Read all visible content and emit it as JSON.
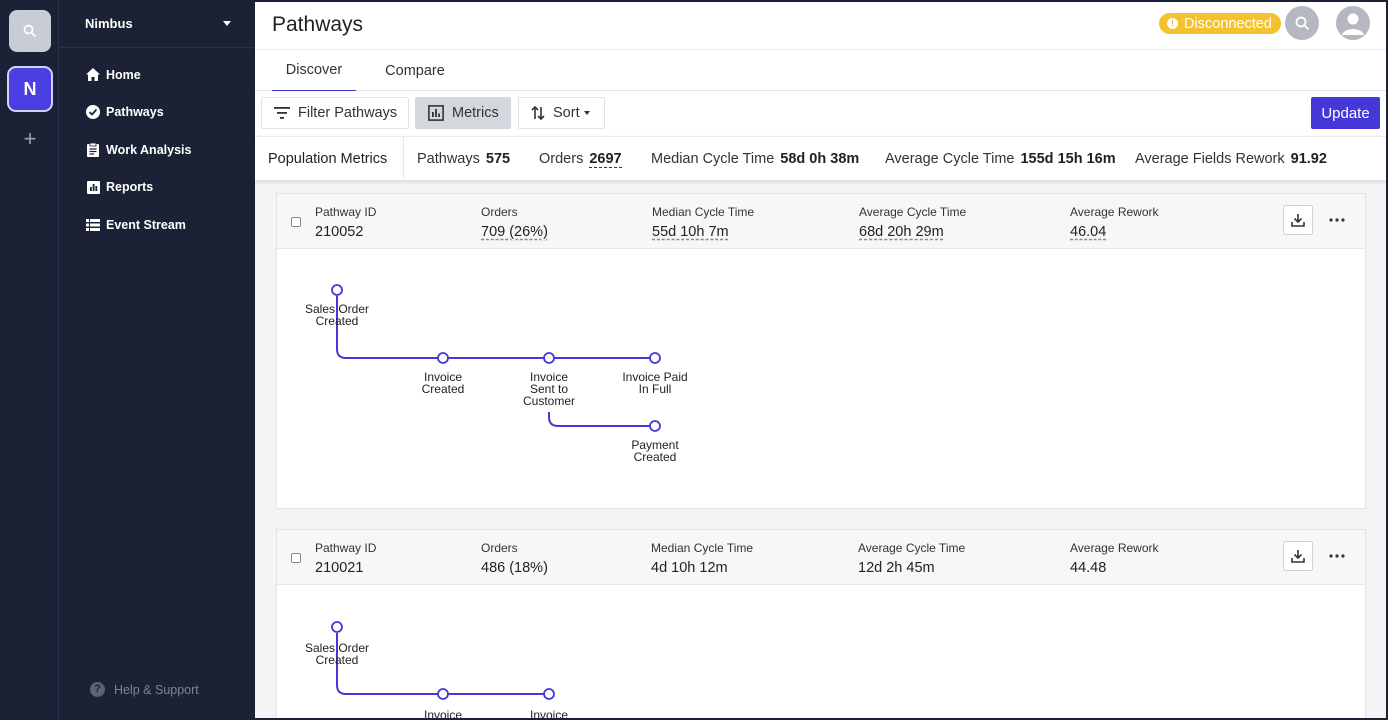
{
  "rail": {
    "org_initial": "N"
  },
  "sidebar": {
    "org_name": "Nimbus",
    "items": [
      {
        "label": "Home",
        "icon": "home-icon"
      },
      {
        "label": "Pathways",
        "icon": "pathways-icon"
      },
      {
        "label": "Work Analysis",
        "icon": "clipboard-icon"
      },
      {
        "label": "Reports",
        "icon": "reports-icon"
      },
      {
        "label": "Event Stream",
        "icon": "list-icon"
      }
    ],
    "help_label": "Help & Support"
  },
  "header": {
    "title": "Pathways",
    "status_label": "Disconnected",
    "status_color": "#f3c22c"
  },
  "tabs": [
    {
      "label": "Discover",
      "active": true
    },
    {
      "label": "Compare",
      "active": false
    }
  ],
  "toolbar": {
    "filter_label": "Filter Pathways",
    "metrics_label": "Metrics",
    "sort_label": "Sort",
    "update_label": "Update",
    "accent_color": "#4438d9"
  },
  "population_metrics": {
    "label": "Population Metrics",
    "pathways_label": "Pathways",
    "pathways_value": "575",
    "orders_label": "Orders",
    "orders_value": "2697",
    "median_label": "Median Cycle Time",
    "median_value": "58d 0h 38m",
    "average_label": "Average Cycle Time",
    "average_value": "155d 15h 16m",
    "rework_label": "Average Fields Rework",
    "rework_value": "91.92"
  },
  "pathways": [
    {
      "id_label": "Pathway ID",
      "id": "210052",
      "orders_label": "Orders",
      "orders": "709 (26%)",
      "median_label": "Median Cycle Time",
      "median": "55d 10h 7m",
      "average_label": "Average Cycle Time",
      "average": "68d 20h 29m",
      "rework_label": "Average Rework",
      "rework": "46.04",
      "nodes": [
        {
          "line1": "Sales Order",
          "line2": "Created",
          "line3": ""
        },
        {
          "line1": "Invoice",
          "line2": "Created",
          "line3": ""
        },
        {
          "line1": "Invoice",
          "line2": "Sent to",
          "line3": "Customer"
        },
        {
          "line1": "Invoice Paid",
          "line2": "In Full",
          "line3": ""
        },
        {
          "line1": "Payment",
          "line2": "Created",
          "line3": ""
        }
      ]
    },
    {
      "id_label": "Pathway ID",
      "id": "210021",
      "orders_label": "Orders",
      "orders": "486 (18%)",
      "median_label": "Median Cycle Time",
      "median": "4d 10h 12m",
      "average_label": "Average Cycle Time",
      "average": "12d 2h 45m",
      "rework_label": "Average Rework",
      "rework": "44.48",
      "nodes": [
        {
          "line1": "Sales Order",
          "line2": "Created",
          "line3": ""
        },
        {
          "line1": "Invoice",
          "line2": "",
          "line3": ""
        },
        {
          "line1": "Invoice",
          "line2": "",
          "line3": ""
        }
      ]
    }
  ]
}
